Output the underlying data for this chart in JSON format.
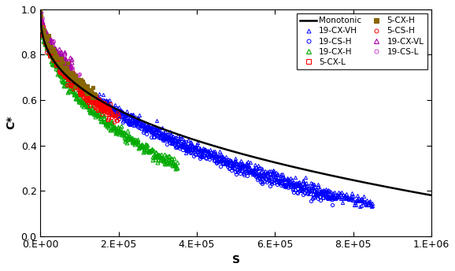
{
  "title": "",
  "xlabel": "S",
  "ylabel": "C*",
  "xlim": [
    0,
    1000000.0
  ],
  "ylim": [
    0.0,
    1.0
  ],
  "xticks": [
    0,
    200000.0,
    400000.0,
    600000.0,
    800000.0,
    1000000.0
  ],
  "xtick_labels": [
    "0.E+00",
    "2.E+05",
    "4.E+05",
    "6.E+05",
    "8.E+05",
    "1.E+06"
  ],
  "yticks": [
    0.0,
    0.2,
    0.4,
    0.6,
    0.8,
    1.0
  ],
  "monotonic_color": "#000000",
  "series": [
    {
      "name": "Monotonic",
      "color": "#000000",
      "marker": "none",
      "linestyle": "-",
      "markersize": 4
    },
    {
      "name": "19-CX-H",
      "color": "#00aa00",
      "marker": "^",
      "linestyle": "none",
      "markersize": 4,
      "markerfacecolor": "none"
    },
    {
      "name": "19-CX-VL",
      "color": "#aa00aa",
      "marker": "^",
      "linestyle": "none",
      "markersize": 4,
      "markerfacecolor": "none"
    },
    {
      "name": "19-CX-VH",
      "color": "#0000ff",
      "marker": "^",
      "linestyle": "none",
      "markersize": 4,
      "markerfacecolor": "none"
    },
    {
      "name": "5-CX-L",
      "color": "#ff0000",
      "marker": "s",
      "linestyle": "none",
      "markersize": 4,
      "markerfacecolor": "none"
    },
    {
      "name": "5-CX-H",
      "color": "#886600",
      "marker": "s",
      "linestyle": "none",
      "markersize": 4
    },
    {
      "name": "5-CS-H",
      "color": "#ff0000",
      "marker": "o",
      "linestyle": "none",
      "markersize": 4,
      "markerfacecolor": "none"
    },
    {
      "name": "19-CS-H",
      "color": "#0000ff",
      "marker": "o",
      "linestyle": "none",
      "markersize": 4,
      "markerfacecolor": "none"
    },
    {
      "name": "19-CS-L",
      "color": "#cc44cc",
      "marker": "o",
      "linestyle": "none",
      "markersize": 4,
      "markerfacecolor": "none"
    }
  ],
  "background_color": "#ffffff",
  "legend_fontsize": 7.5,
  "axis_label_fontsize": 10,
  "tick_label_fontsize": 9
}
